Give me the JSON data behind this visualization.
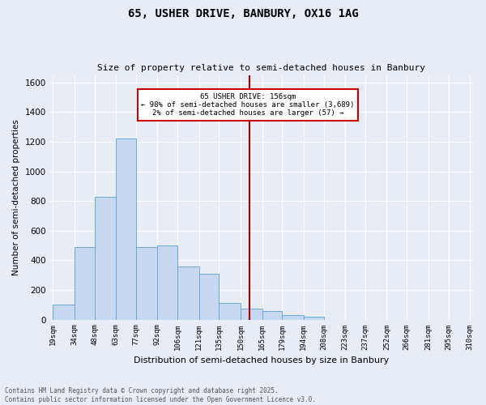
{
  "title1": "65, USHER DRIVE, BANBURY, OX16 1AG",
  "title2": "Size of property relative to semi-detached houses in Banbury",
  "xlabel": "Distribution of semi-detached houses by size in Banbury",
  "ylabel": "Number of semi-detached properties",
  "bins": [
    19,
    34,
    48,
    63,
    77,
    92,
    106,
    121,
    135,
    150,
    165,
    179,
    194,
    208,
    223,
    237,
    252,
    266,
    281,
    295,
    310
  ],
  "counts": [
    100,
    490,
    830,
    1220,
    490,
    500,
    360,
    310,
    110,
    75,
    55,
    30,
    20,
    0,
    0,
    0,
    0,
    0,
    0,
    0
  ],
  "bar_color": "#c5d8ef",
  "bar_edgecolor": "#6aaad4",
  "bg_color": "#e8edf5",
  "grid_color": "#d0d8e8",
  "vline_x": 156,
  "vline_color": "#aa0000",
  "annotation_title": "65 USHER DRIVE: 156sqm",
  "annotation_line1": "← 98% of semi-detached houses are smaller (3,689)",
  "annotation_line2": "2% of semi-detached houses are larger (57) →",
  "annotation_box_color": "#cc0000",
  "ylim": [
    0,
    1650
  ],
  "yticks": [
    0,
    200,
    400,
    600,
    800,
    1000,
    1200,
    1400,
    1600
  ],
  "footer1": "Contains HM Land Registry data © Crown copyright and database right 2025.",
  "footer2": "Contains public sector information licensed under the Open Government Licence v3.0."
}
